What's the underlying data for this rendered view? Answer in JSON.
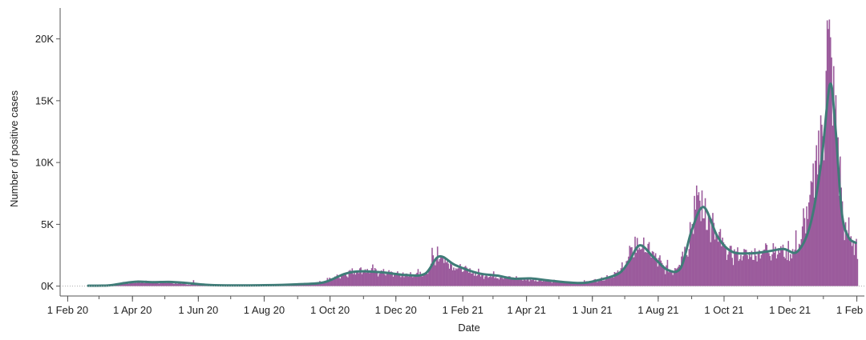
{
  "chart_data": {
    "type": "bar",
    "xlabel": "Date",
    "ylabel": "Number of positive cases",
    "x_range": [
      "2020-01-25",
      "2022-02-08"
    ],
    "ylim": [
      -800,
      22500
    ],
    "y_ticks": [
      0,
      5000,
      10000,
      15000,
      20000
    ],
    "y_tick_labels": [
      "0K",
      "5K",
      "10K",
      "15K",
      "20K"
    ],
    "x_ticks": [
      "2020-02-01",
      "2020-04-01",
      "2020-06-01",
      "2020-08-01",
      "2020-10-01",
      "2020-12-01",
      "2021-02-01",
      "2021-04-01",
      "2021-06-01",
      "2021-08-01",
      "2021-10-01",
      "2021-12-01",
      "2022-02-01"
    ],
    "x_tick_labels": [
      "1 Feb 20",
      "1 Apr 20",
      "1 Jun 20",
      "1 Aug 20",
      "1 Oct 20",
      "1 Dec 20",
      "1 Feb 21",
      "1 Apr 21",
      "1 Jun 21",
      "1 Aug 21",
      "1 Oct 21",
      "1 Dec 21",
      "1 Feb 22"
    ],
    "grid": false,
    "zero_line": "dotted",
    "series": [
      {
        "type": "bar",
        "color": "#9b5b9c",
        "anchors": [
          [
            "2020-03-01",
            20
          ],
          [
            "2020-03-20",
            220
          ],
          [
            "2020-04-05",
            320
          ],
          [
            "2020-05-01",
            310
          ],
          [
            "2020-05-20",
            150
          ],
          [
            "2020-06-10",
            70
          ],
          [
            "2020-07-15",
            60
          ],
          [
            "2020-08-20",
            110
          ],
          [
            "2020-09-20",
            260
          ],
          [
            "2020-10-10",
            900
          ],
          [
            "2020-10-25",
            1350
          ],
          [
            "2020-11-15",
            1200
          ],
          [
            "2020-12-10",
            900
          ],
          [
            "2020-12-28",
            1050
          ],
          [
            "2021-01-05",
            2200
          ],
          [
            "2021-01-10",
            2500
          ],
          [
            "2021-01-25",
            1600
          ],
          [
            "2021-02-15",
            1000
          ],
          [
            "2021-03-10",
            750
          ],
          [
            "2021-03-25",
            580
          ],
          [
            "2021-04-15",
            500
          ],
          [
            "2021-05-05",
            300
          ],
          [
            "2021-05-20",
            280
          ],
          [
            "2021-06-10",
            600
          ],
          [
            "2021-06-25",
            1100
          ],
          [
            "2021-07-05",
            2500
          ],
          [
            "2021-07-15",
            3500
          ],
          [
            "2021-07-25",
            2800
          ],
          [
            "2021-08-05",
            1600
          ],
          [
            "2021-08-15",
            1300
          ],
          [
            "2021-08-28",
            3500
          ],
          [
            "2021-09-05",
            6800
          ],
          [
            "2021-09-12",
            6500
          ],
          [
            "2021-09-22",
            4200
          ],
          [
            "2021-10-05",
            2700
          ],
          [
            "2021-10-25",
            2600
          ],
          [
            "2021-11-15",
            3200
          ],
          [
            "2021-11-30",
            2700
          ],
          [
            "2021-12-10",
            3600
          ],
          [
            "2021-12-20",
            7500
          ],
          [
            "2021-12-28",
            11000
          ],
          [
            "2022-01-03",
            17000
          ],
          [
            "2022-01-06",
            19500
          ],
          [
            "2022-01-09",
            16500
          ],
          [
            "2022-01-14",
            12000
          ],
          [
            "2022-01-19",
            5000
          ],
          [
            "2022-01-25",
            4000
          ],
          [
            "2022-01-31",
            3500
          ],
          [
            "2022-02-01",
            2300
          ]
        ],
        "spikes": [
          [
            "2020-05-27",
            480
          ],
          [
            "2021-01-03",
            3100
          ],
          [
            "2021-01-08",
            3200
          ],
          [
            "2021-07-10",
            4000
          ],
          [
            "2021-07-12",
            3900
          ],
          [
            "2021-09-03",
            7300
          ],
          [
            "2021-09-07",
            7600
          ],
          [
            "2021-12-20",
            8500
          ],
          [
            "2021-12-25",
            11400
          ],
          [
            "2022-01-04",
            21500
          ],
          [
            "2022-01-05",
            20800
          ],
          [
            "2022-01-08",
            18500
          ],
          [
            "2022-01-10",
            17800
          ]
        ]
      },
      {
        "type": "line",
        "color": "#3f7c78",
        "points": [
          [
            "2020-02-20",
            30
          ],
          [
            "2020-03-10",
            60
          ],
          [
            "2020-03-25",
            250
          ],
          [
            "2020-04-05",
            360
          ],
          [
            "2020-04-20",
            320
          ],
          [
            "2020-05-05",
            340
          ],
          [
            "2020-05-20",
            260
          ],
          [
            "2020-06-10",
            100
          ],
          [
            "2020-07-01",
            60
          ],
          [
            "2020-08-01",
            70
          ],
          [
            "2020-09-01",
            150
          ],
          [
            "2020-09-25",
            300
          ],
          [
            "2020-10-15",
            1000
          ],
          [
            "2020-10-30",
            1200
          ],
          [
            "2020-11-20",
            1100
          ],
          [
            "2020-12-10",
            900
          ],
          [
            "2020-12-28",
            1000
          ],
          [
            "2021-01-10",
            2400
          ],
          [
            "2021-01-25",
            1700
          ],
          [
            "2021-02-15",
            1050
          ],
          [
            "2021-03-05",
            850
          ],
          [
            "2021-03-20",
            600
          ],
          [
            "2021-04-05",
            620
          ],
          [
            "2021-04-25",
            420
          ],
          [
            "2021-05-20",
            250
          ],
          [
            "2021-06-05",
            450
          ],
          [
            "2021-06-25",
            1000
          ],
          [
            "2021-07-05",
            2000
          ],
          [
            "2021-07-15",
            3300
          ],
          [
            "2021-07-28",
            2300
          ],
          [
            "2021-08-10",
            1300
          ],
          [
            "2021-08-22",
            1500
          ],
          [
            "2021-09-01",
            4500
          ],
          [
            "2021-09-12",
            6400
          ],
          [
            "2021-09-25",
            4000
          ],
          [
            "2021-10-08",
            2800
          ],
          [
            "2021-10-25",
            2650
          ],
          [
            "2021-11-10",
            2800
          ],
          [
            "2021-11-25",
            3000
          ],
          [
            "2021-12-08",
            2800
          ],
          [
            "2021-12-20",
            5000
          ],
          [
            "2021-12-30",
            10000
          ],
          [
            "2022-01-07",
            16300
          ],
          [
            "2022-01-12",
            13000
          ],
          [
            "2022-01-18",
            6000
          ],
          [
            "2022-01-24",
            4000
          ],
          [
            "2022-01-31",
            3500
          ]
        ]
      }
    ]
  }
}
